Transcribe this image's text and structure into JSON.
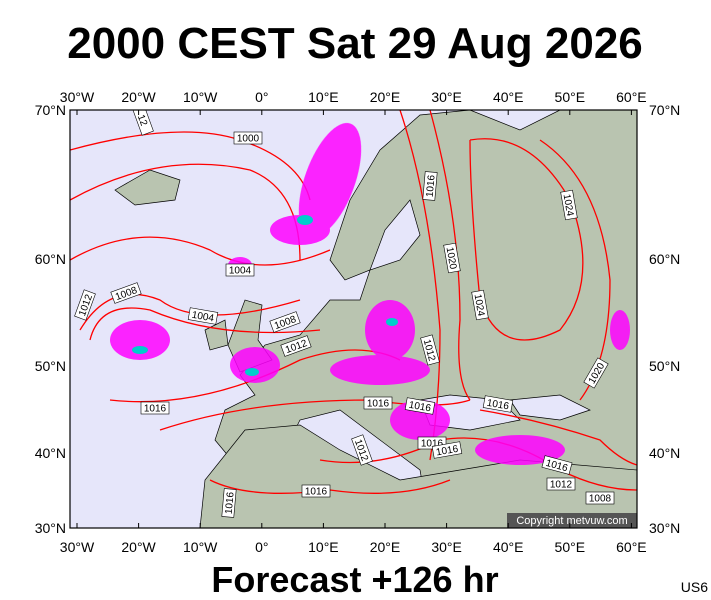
{
  "title": "2000 CEST Sat 29 Aug 2026",
  "lon_labels": [
    "30°W",
    "20°W",
    "10°W",
    "0°",
    "10°E",
    "20°E",
    "30°E",
    "40°E",
    "50°E",
    "60°E"
  ],
  "lat_labels": [
    "70°N",
    "60°N",
    "50°N",
    "40°N",
    "30°N"
  ],
  "isobar_labels": [
    "12",
    "1000",
    "1004",
    "1008",
    "1012",
    "1004",
    "1008",
    "1012",
    "1016",
    "1016",
    "1016",
    "1012",
    "1016",
    "1020",
    "1024",
    "1024",
    "1020",
    "1016",
    "1016",
    "1016",
    "1012",
    "1016",
    "1012",
    "1008",
    "1016",
    "1016"
  ],
  "copyright": "Copyright metvuw.com",
  "footer": "Forecast +126 hr",
  "code": "US6"
}
